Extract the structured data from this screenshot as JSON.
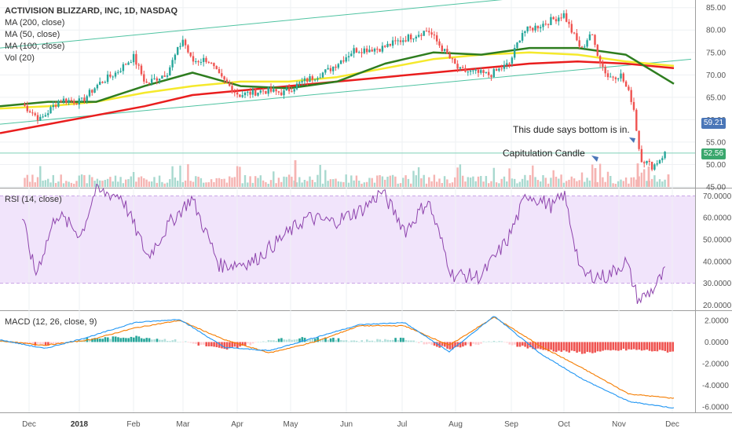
{
  "header": {
    "title": "ACTIVISION BLIZZARD, INC, 1D, NASDAQ",
    "indicators": [
      "MA (200, close)",
      "MA (50, close)",
      "MA (100, close)",
      "Vol (20)"
    ]
  },
  "annotations": {
    "bottom_note": "This dude says bottom is in.",
    "capitulation": "Capitulation Candle"
  },
  "price_tags": {
    "top": "59.21",
    "current": "52.56"
  },
  "rsi_panel": {
    "label": "RSI (14, close)"
  },
  "macd_panel": {
    "label": "MACD (12, 26, close, 9)"
  },
  "colors": {
    "up": "#26a69a",
    "down": "#ef5350",
    "ma200": "#e91e1e",
    "ma50": "#2e7d1f",
    "ma100": "#f5e92c",
    "channel": "#4fc3a1",
    "rsi_line": "#8e44ad",
    "rsi_band": "#f1e4fb",
    "macd_line": "#2196f3",
    "signal_line": "#f57c00",
    "tag_blue": "#4a76b8",
    "tag_green": "#3aa76d"
  },
  "chart_data": [
    {
      "type": "candlestick",
      "title": "ACTIVISION BLIZZARD, INC, 1D, NASDAQ",
      "x_ticks": [
        "Dec",
        "2018",
        "Feb",
        "Mar",
        "Apr",
        "May",
        "Jun",
        "Jul",
        "Aug",
        "Sep",
        "Oct",
        "Nov",
        "Dec"
      ],
      "y_ticks": [
        "85.00",
        "80.00",
        "75.00",
        "70.00",
        "65.00",
        "60.00",
        "55.00",
        "50.00",
        "45.00"
      ],
      "ylim": [
        45,
        86
      ],
      "close_anchors": [
        {
          "x": "Nov 27",
          "y": 63.5
        },
        {
          "x": "Dec 8",
          "y": 60.0
        },
        {
          "x": "Dec 20",
          "y": 64.5
        },
        {
          "x": "Jan 2",
          "y": 64.0
        },
        {
          "x": "Jan 12",
          "y": 68.0
        },
        {
          "x": "Jan 22",
          "y": 70.5
        },
        {
          "x": "Feb 1",
          "y": 74.0
        },
        {
          "x": "Feb 8",
          "y": 68.0
        },
        {
          "x": "Feb 20",
          "y": 70.5
        },
        {
          "x": "Mar 1",
          "y": 78.0
        },
        {
          "x": "Mar 6",
          "y": 73.0
        },
        {
          "x": "Mar 15",
          "y": 73.5
        },
        {
          "x": "Mar 22",
          "y": 69.5
        },
        {
          "x": "Apr 2",
          "y": 65.5
        },
        {
          "x": "Apr 16",
          "y": 66.5
        },
        {
          "x": "Apr 27",
          "y": 66.0
        },
        {
          "x": "May 8",
          "y": 68.5
        },
        {
          "x": "May 22",
          "y": 71.0
        },
        {
          "x": "Jun 5",
          "y": 75.5
        },
        {
          "x": "Jun 20",
          "y": 76.0
        },
        {
          "x": "Jul 2",
          "y": 78.0
        },
        {
          "x": "Jul 16",
          "y": 80.0
        },
        {
          "x": "Jul 26",
          "y": 75.0
        },
        {
          "x": "Aug 3",
          "y": 71.0
        },
        {
          "x": "Aug 20",
          "y": 70.0
        },
        {
          "x": "Aug 31",
          "y": 72.5
        },
        {
          "x": "Sep 7",
          "y": 79.5
        },
        {
          "x": "Sep 20",
          "y": 81.5
        },
        {
          "x": "Oct 1",
          "y": 83.5
        },
        {
          "x": "Oct 5",
          "y": 80.0
        },
        {
          "x": "Oct 11",
          "y": 75.5
        },
        {
          "x": "Oct 16",
          "y": 79.5
        },
        {
          "x": "Oct 22",
          "y": 72.5
        },
        {
          "x": "Oct 26",
          "y": 69.5
        },
        {
          "x": "Nov 2",
          "y": 70.0
        },
        {
          "x": "Nov 7",
          "y": 65.5
        },
        {
          "x": "Nov 9",
          "y": 63.5
        },
        {
          "x": "Nov 13",
          "y": 51.5
        },
        {
          "x": "Nov 20",
          "y": 49.5
        },
        {
          "x": "Nov 27",
          "y": 52.56
        }
      ],
      "moving_averages": [
        {
          "name": "MA (200, close)",
          "values": [
            57,
            59,
            61,
            63,
            65.5,
            66.5,
            67.5,
            68.5,
            69.5,
            70.5,
            71.5,
            72.5,
            73,
            72.5,
            71.5
          ]
        },
        {
          "name": "MA (50, close)",
          "values": [
            63,
            64,
            64,
            67.5,
            70.5,
            67.5,
            67,
            68.5,
            72.5,
            75,
            74.5,
            76,
            76,
            74.5,
            68
          ]
        },
        {
          "name": "MA (100, close)",
          "values": [
            62.5,
            63,
            64,
            66,
            67.5,
            68.5,
            68.5,
            69.5,
            71.5,
            73.5,
            74.5,
            75,
            74.5,
            73,
            72
          ]
        }
      ],
      "channel": {
        "upper_start": 76.0,
        "upper_end": 87.5,
        "lower_start": 59.0,
        "lower_end": 73.5
      }
    },
    {
      "type": "line",
      "title": "RSI (14, close)",
      "y_ticks": [
        "70.0000",
        "60.0000",
        "50.0000",
        "40.0000",
        "30.0000",
        "20.0000"
      ],
      "ylim": [
        18,
        73
      ],
      "band": [
        30,
        70
      ],
      "anchors": [
        {
          "x": "Nov 27",
          "y": 60
        },
        {
          "x": "Dec 5",
          "y": 34
        },
        {
          "x": "Dec 18",
          "y": 62
        },
        {
          "x": "Jan 2",
          "y": 52
        },
        {
          "x": "Jan 10",
          "y": 72
        },
        {
          "x": "Jan 25",
          "y": 70
        },
        {
          "x": "Feb 9",
          "y": 42
        },
        {
          "x": "Feb 22",
          "y": 58
        },
        {
          "x": "Mar 6",
          "y": 69
        },
        {
          "x": "Mar 22",
          "y": 38
        },
        {
          "x": "Apr 10",
          "y": 40
        },
        {
          "x": "Apr 25",
          "y": 50
        },
        {
          "x": "May 10",
          "y": 60
        },
        {
          "x": "May 25",
          "y": 58
        },
        {
          "x": "Jun 10",
          "y": 64
        },
        {
          "x": "Jun 20",
          "y": 72
        },
        {
          "x": "Jul 3",
          "y": 54
        },
        {
          "x": "Jul 16",
          "y": 68
        },
        {
          "x": "Jul 30",
          "y": 34
        },
        {
          "x": "Aug 15",
          "y": 33
        },
        {
          "x": "Aug 30",
          "y": 50
        },
        {
          "x": "Sep 10",
          "y": 71
        },
        {
          "x": "Sep 25",
          "y": 65
        },
        {
          "x": "Oct 1",
          "y": 71
        },
        {
          "x": "Oct 11",
          "y": 34
        },
        {
          "x": "Oct 25",
          "y": 33
        },
        {
          "x": "Nov 5",
          "y": 40
        },
        {
          "x": "Nov 12",
          "y": 22
        },
        {
          "x": "Nov 20",
          "y": 27
        },
        {
          "x": "Nov 27",
          "y": 35
        }
      ]
    },
    {
      "type": "line+bar",
      "title": "MACD (12, 26, close, 9)",
      "y_ticks": [
        "2.0000",
        "0.0000",
        "-2.0000",
        "-4.0000",
        "-6.0000"
      ],
      "ylim": [
        -6.5,
        2.5
      ],
      "series": [
        {
          "name": "MACD",
          "values": [
            0.2,
            -0.6,
            0.5,
            1.8,
            2.1,
            -0.5,
            -0.8,
            0.4,
            1.6,
            1.8,
            -0.9,
            2.4,
            -1.0,
            -3.5,
            -5.5,
            -6.1
          ]
        },
        {
          "name": "Signal",
          "values": [
            0.1,
            -0.3,
            0.2,
            1.3,
            2.0,
            0.2,
            -1.0,
            0.0,
            1.5,
            1.5,
            -0.3,
            2.3,
            -0.3,
            -2.5,
            -4.8,
            -5.2
          ]
        }
      ]
    }
  ]
}
